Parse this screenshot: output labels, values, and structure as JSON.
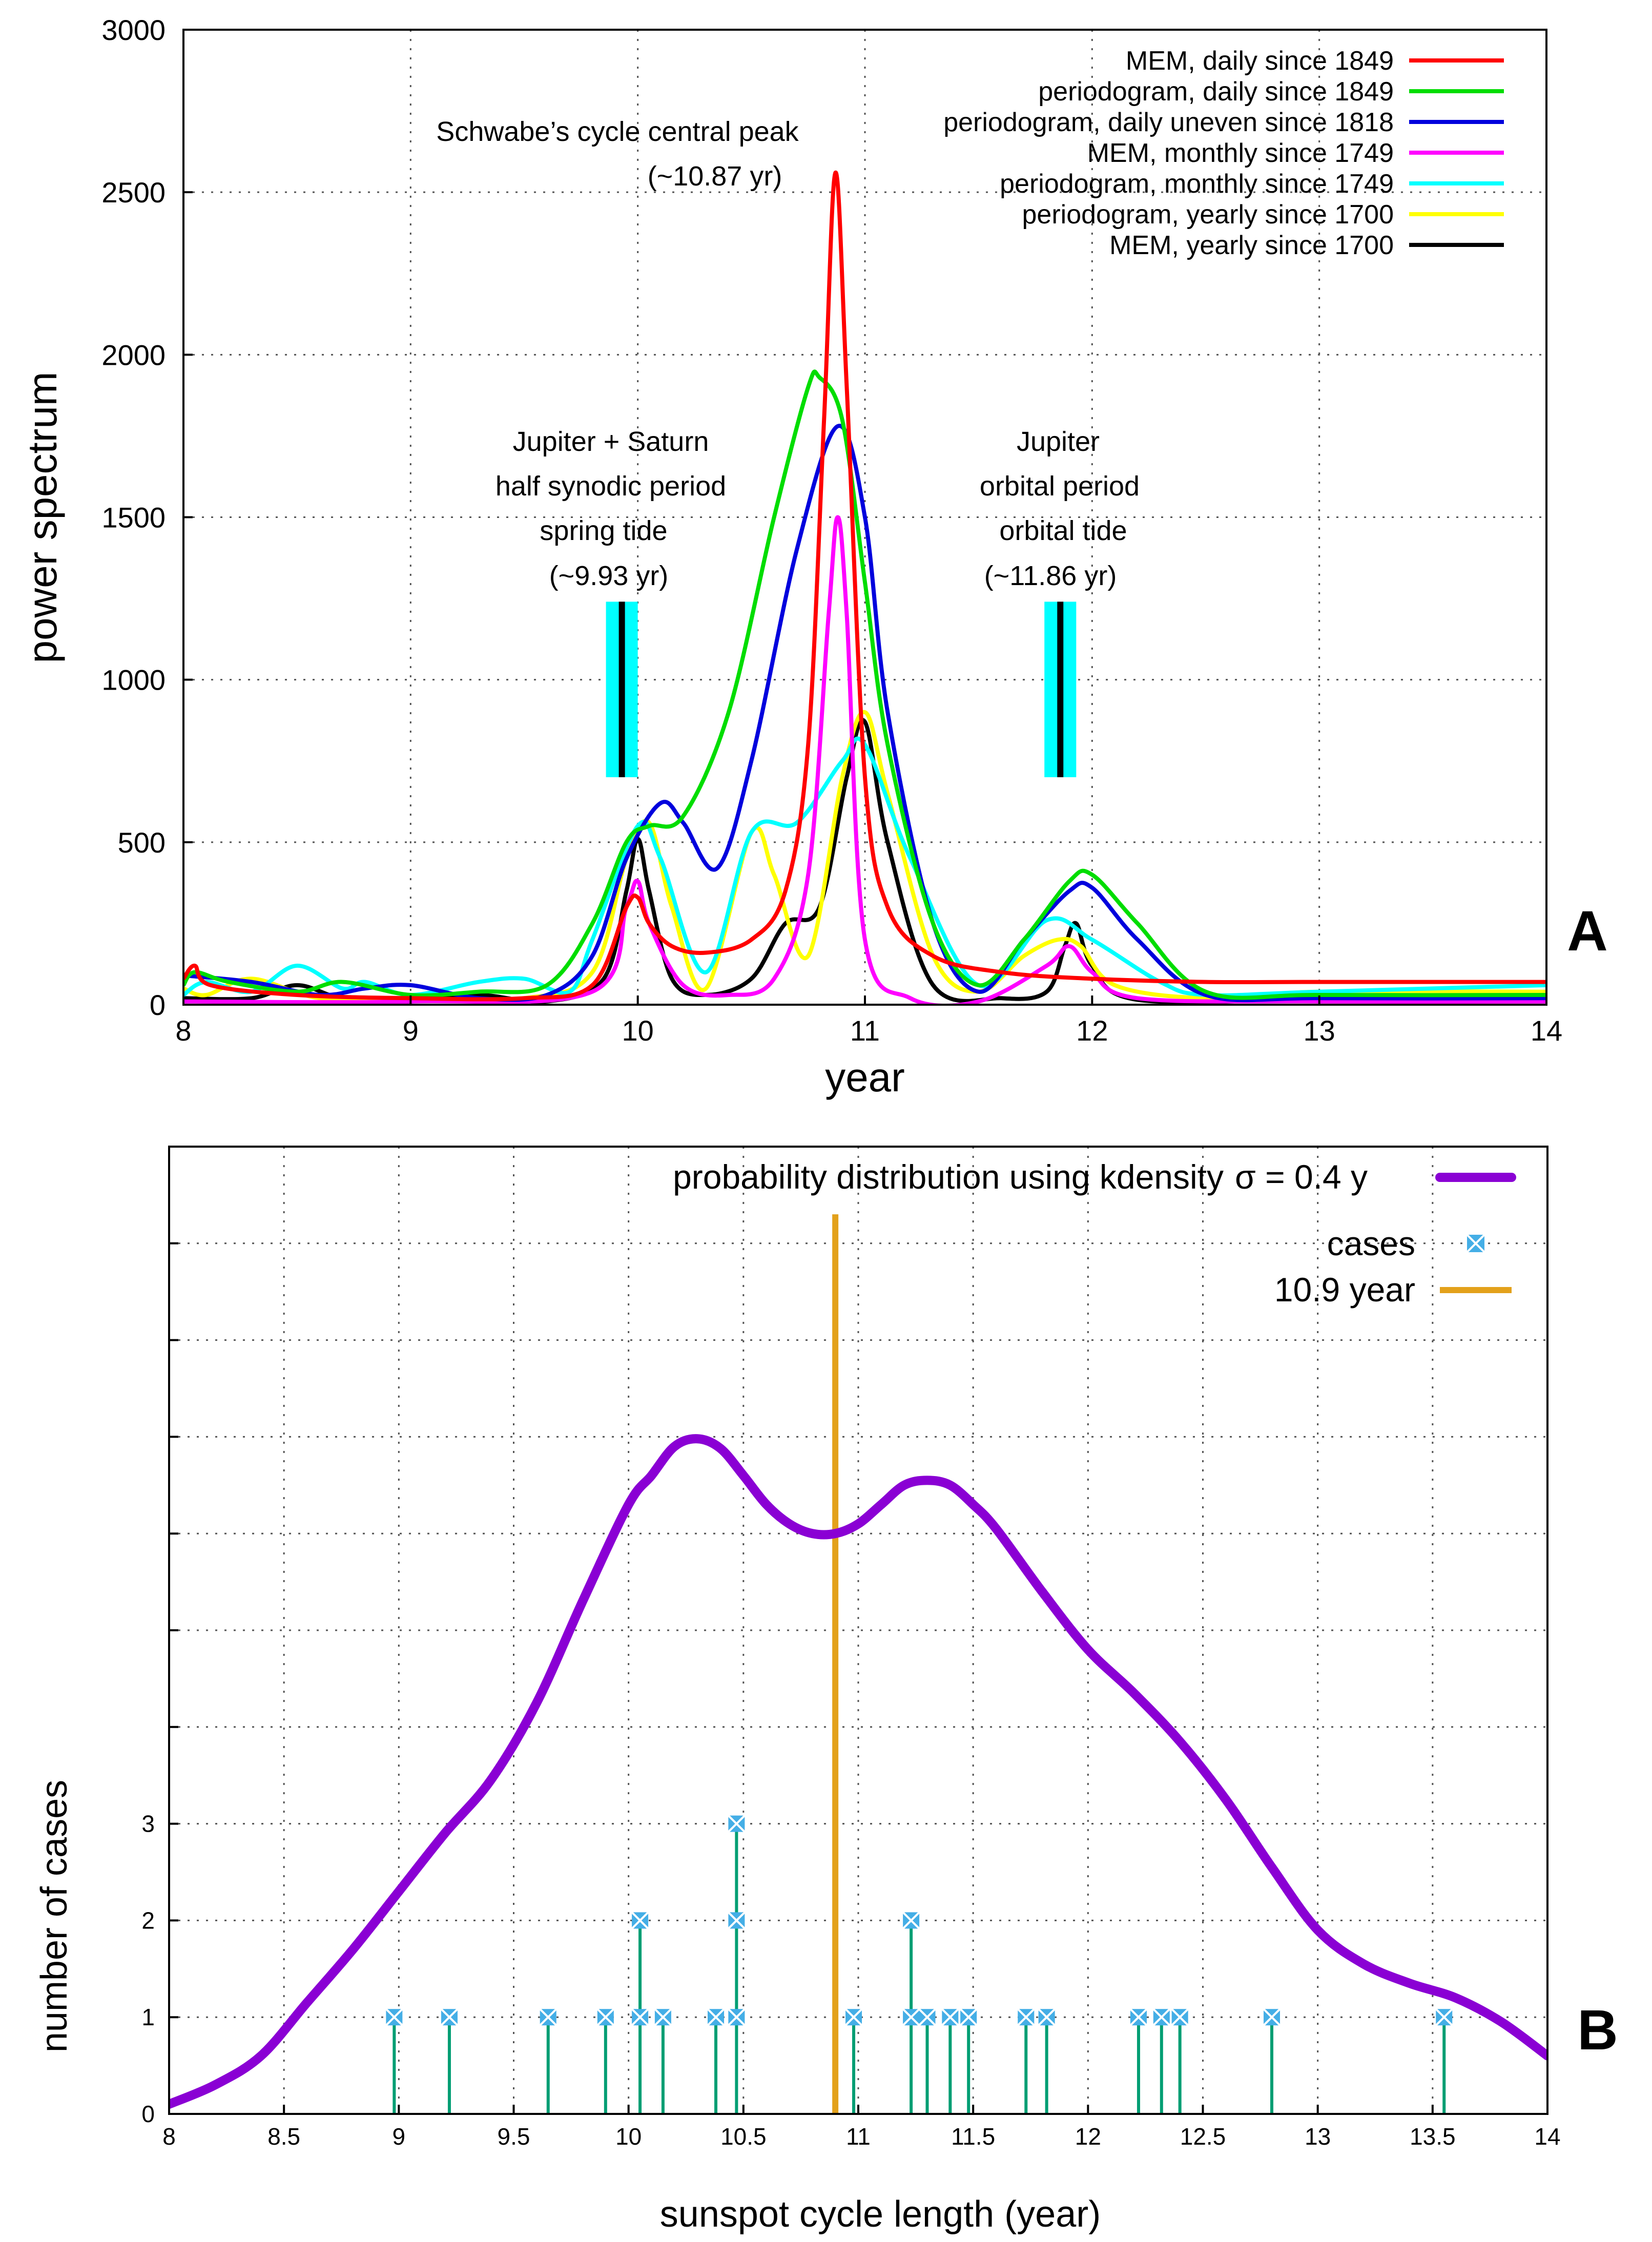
{
  "chart_data": [
    {
      "type": "line",
      "panel_label": "A",
      "title": "",
      "xlabel": "year",
      "ylabel": "power spectrum",
      "xlim": [
        8,
        14
      ],
      "ylim": [
        0,
        3000
      ],
      "grid": true,
      "legend_position": "top-right",
      "x_ticks": [
        "8",
        "9",
        "10",
        "11",
        "12",
        "13",
        "14"
      ],
      "y_ticks": [
        "0",
        "500",
        "1000",
        "1500",
        "2000",
        "2500",
        "3000"
      ],
      "annotations": [
        {
          "id": "schwabe",
          "lines": [
            "Schwabe’s cycle central peak",
            "(~10.87 yr)"
          ]
        },
        {
          "id": "saturn",
          "lines": [
            "Jupiter + Saturn",
            "half synodic period",
            "spring tide",
            "(~9.93 yr)"
          ]
        },
        {
          "id": "jupiter",
          "lines": [
            "Jupiter",
            "orbital period",
            "orbital tide",
            "(~11.86 yr)"
          ]
        }
      ],
      "markers": [
        {
          "label": "~9.93 yr",
          "x": 9.93,
          "band": [
            9.86,
            10.0
          ],
          "y_range": [
            700,
            1240
          ]
        },
        {
          "label": "~11.86 yr",
          "x": 11.86,
          "band": [
            11.79,
            11.93
          ],
          "y_range": [
            700,
            1240
          ]
        }
      ],
      "series": [
        {
          "name": "MEM, daily since 1849",
          "color": "#ff0000",
          "x": [
            8,
            8.05,
            8.12,
            8.5,
            9,
            9.5,
            9.8,
            9.95,
            10.0,
            10.05,
            10.15,
            10.3,
            10.5,
            10.65,
            10.75,
            10.82,
            10.87,
            10.92,
            11.0,
            11.1,
            11.3,
            11.6,
            12,
            12.5,
            13,
            14
          ],
          "y": [
            80,
            120,
            60,
            30,
            20,
            20,
            60,
            300,
            330,
            250,
            180,
            160,
            200,
            350,
            800,
            1800,
            2560,
            1900,
            700,
            300,
            150,
            100,
            80,
            70,
            70,
            70
          ]
        },
        {
          "name": "periodogram, daily since 1849",
          "color": "#00dd00",
          "x": [
            8,
            8.05,
            8.2,
            8.5,
            8.7,
            9.0,
            9.3,
            9.6,
            9.8,
            9.95,
            10.05,
            10.2,
            10.4,
            10.6,
            10.75,
            10.8,
            10.9,
            11.0,
            11.1,
            11.3,
            11.5,
            11.7,
            11.9,
            12.0,
            12.2,
            12.5,
            13,
            14
          ],
          "y": [
            60,
            100,
            70,
            40,
            70,
            30,
            40,
            60,
            250,
            500,
            550,
            580,
            900,
            1500,
            1900,
            1930,
            1800,
            1300,
            800,
            250,
            60,
            200,
            380,
            400,
            250,
            40,
            30,
            30
          ]
        },
        {
          "name": "periodogram, daily uneven since 1818",
          "color": "#0000dd",
          "x": [
            8,
            8.3,
            8.6,
            8.8,
            9.0,
            9.3,
            9.6,
            9.8,
            9.95,
            10.1,
            10.2,
            10.35,
            10.5,
            10.7,
            10.88,
            11.0,
            11.1,
            11.3,
            11.5,
            11.7,
            11.9,
            12.0,
            12.2,
            12.5,
            13,
            14
          ],
          "y": [
            90,
            70,
            30,
            50,
            60,
            20,
            30,
            150,
            450,
            620,
            560,
            420,
            750,
            1400,
            1780,
            1500,
            900,
            250,
            40,
            200,
            350,
            360,
            200,
            30,
            20,
            20
          ]
        },
        {
          "name": "MEM, monthly since 1749",
          "color": "#ff00ff",
          "x": [
            8,
            9,
            9.8,
            9.95,
            10.0,
            10.05,
            10.2,
            10.4,
            10.6,
            10.75,
            10.84,
            10.88,
            10.92,
            11.0,
            11.2,
            11.5,
            11.8,
            11.9,
            12.0,
            12.2,
            13,
            14
          ],
          "y": [
            10,
            10,
            40,
            300,
            380,
            250,
            60,
            30,
            80,
            400,
            1200,
            1500,
            1200,
            200,
            20,
            10,
            120,
            180,
            100,
            20,
            10,
            10
          ]
        },
        {
          "name": "periodogram, monthly since 1749",
          "color": "#00ffff",
          "x": [
            8,
            8.1,
            8.3,
            8.5,
            8.7,
            8.8,
            9.0,
            9.3,
            9.5,
            9.7,
            9.8,
            10.0,
            10.1,
            10.3,
            10.5,
            10.7,
            10.9,
            11.0,
            11.2,
            11.5,
            11.8,
            12.0,
            12.3,
            12.5,
            13,
            14
          ],
          "y": [
            30,
            70,
            40,
            120,
            50,
            70,
            30,
            70,
            80,
            40,
            200,
            550,
            450,
            100,
            530,
            560,
            750,
            800,
            450,
            60,
            260,
            200,
            70,
            30,
            40,
            60
          ]
        },
        {
          "name": "periodogram, yearly since 1700",
          "color": "#ffff00",
          "x": [
            8,
            8.1,
            8.3,
            8.6,
            9,
            9.5,
            9.8,
            9.95,
            10.05,
            10.15,
            10.3,
            10.5,
            10.6,
            10.75,
            10.9,
            11.0,
            11.1,
            11.3,
            11.5,
            11.7,
            11.85,
            11.95,
            12.1,
            12.5,
            13,
            14
          ],
          "y": [
            50,
            30,
            80,
            20,
            20,
            20,
            100,
            450,
            560,
            300,
            50,
            530,
            400,
            150,
            700,
            900,
            650,
            150,
            40,
            150,
            200,
            180,
            60,
            20,
            40,
            40
          ]
        },
        {
          "name": "MEM, yearly since 1700",
          "color": "#000000",
          "x": [
            8,
            8.3,
            8.5,
            8.7,
            9.0,
            9.3,
            9.6,
            9.85,
            9.95,
            10.0,
            10.05,
            10.15,
            10.3,
            10.5,
            10.65,
            10.8,
            10.92,
            11.0,
            11.1,
            11.3,
            11.6,
            11.8,
            11.88,
            11.93,
            12.0,
            12.2,
            13,
            13.2,
            13.4,
            14
          ],
          "y": [
            20,
            20,
            60,
            20,
            10,
            30,
            10,
            80,
            350,
            510,
            350,
            80,
            30,
            80,
            250,
            300,
            700,
            870,
            500,
            60,
            20,
            40,
            180,
            250,
            120,
            15,
            20,
            40,
            15,
            20
          ]
        }
      ]
    },
    {
      "type": "line",
      "panel_label": "B",
      "title": "",
      "xlabel": "sunspot cycle length (year)",
      "ylabel": "number of cases",
      "xlim": [
        8,
        14
      ],
      "ylim": [
        0,
        10
      ],
      "grid": true,
      "legend_position": "top-right",
      "x_ticks": [
        "8",
        "8.5",
        "9",
        "9.5",
        "10",
        "10.5",
        "11",
        "11.5",
        "12",
        "12.5",
        "13",
        "13.5",
        "14"
      ],
      "y_ticks": [
        "0",
        "1",
        "2",
        "3"
      ],
      "legend": {
        "kde_label": "probability distribution using kdensity",
        "sigma_label": "σ = 0.4 y",
        "cases_label": "cases",
        "vline_label": "10.9 year"
      },
      "kde": {
        "name": "probability distribution using kdensity σ = 0.4 y",
        "color": "#8a00d4",
        "x": [
          8.0,
          8.2,
          8.4,
          8.6,
          8.8,
          9.0,
          9.2,
          9.4,
          9.6,
          9.8,
          10.0,
          10.1,
          10.2,
          10.3,
          10.4,
          10.5,
          10.6,
          10.7,
          10.8,
          10.9,
          11.0,
          11.1,
          11.2,
          11.3,
          11.4,
          11.5,
          11.6,
          11.8,
          12.0,
          12.2,
          12.4,
          12.6,
          12.8,
          13.0,
          13.2,
          13.4,
          13.6,
          13.8,
          14.0
        ],
        "y": [
          0.1,
          0.3,
          0.6,
          1.15,
          1.7,
          2.3,
          2.9,
          3.45,
          4.25,
          5.3,
          6.3,
          6.6,
          6.9,
          6.98,
          6.88,
          6.6,
          6.3,
          6.1,
          6.0,
          6.0,
          6.1,
          6.3,
          6.5,
          6.55,
          6.5,
          6.3,
          6.05,
          5.4,
          4.8,
          4.35,
          3.85,
          3.25,
          2.55,
          1.9,
          1.55,
          1.35,
          1.2,
          0.95,
          0.6
        ]
      },
      "vline": {
        "label": "10.9 year",
        "x": 10.9,
        "color": "#e3a11b"
      },
      "cases": {
        "name": "cases",
        "color": "#44aee6",
        "stem_color": "#009e73",
        "x": [
          8.98,
          9.22,
          9.65,
          9.9,
          10.05,
          10.15,
          10.38,
          10.47,
          10.98,
          11.23,
          11.3,
          11.4,
          11.48,
          11.73,
          11.82,
          12.22,
          12.32,
          12.4,
          12.8,
          13.55
        ],
        "y": [
          1,
          1,
          1,
          1,
          2,
          1,
          1,
          3,
          1,
          2,
          1,
          1,
          1,
          1,
          1,
          1,
          1,
          1,
          1,
          1
        ]
      }
    }
  ]
}
